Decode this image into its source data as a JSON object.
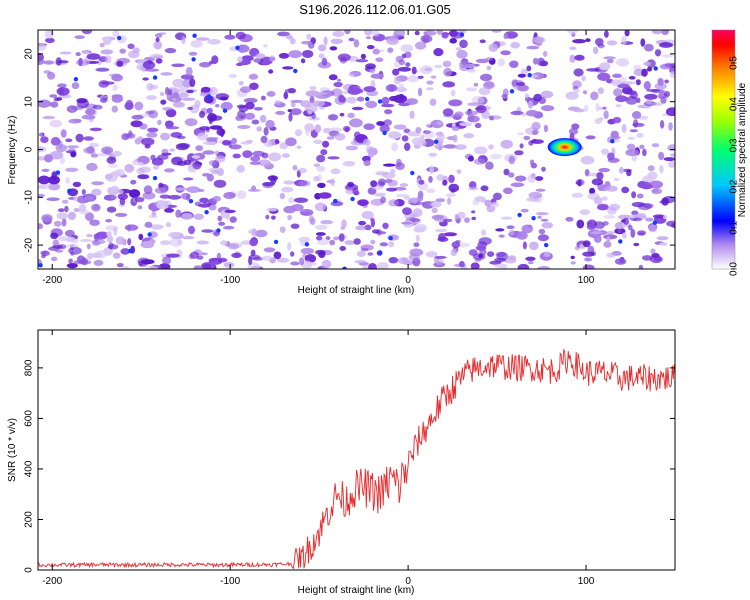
{
  "figure": {
    "title": "S196.2026.112.06.01.G05"
  },
  "chart_data": [
    {
      "type": "heatmap",
      "xlabel": "Height of straight line (km)",
      "ylabel": "Frequency (Hz)",
      "xlim": [
        -208,
        150
      ],
      "ylim": [
        -25,
        25
      ],
      "xticks": [
        -200,
        -100,
        0,
        100
      ],
      "yticks": [
        -20,
        -10,
        0,
        10,
        20
      ],
      "colorbar": {
        "label": "Normalized spectral amplitude",
        "range": [
          0,
          0.58
        ],
        "ticks": [
          0.0,
          0.1,
          0.2,
          0.3,
          0.4,
          0.5
        ],
        "tick_labels": [
          "0.0",
          "0.1",
          "0.2",
          "0.3",
          "0.4",
          "0.5"
        ],
        "colormap": [
          "#ffffff",
          "#8a2be2",
          "#0000ff",
          "#00bfff",
          "#00ff80",
          "#80ff00",
          "#ffff00",
          "#ff8000",
          "#ff0000",
          "#ff0066"
        ]
      },
      "peak": {
        "x": 88,
        "y": 0.5,
        "value": 0.57
      },
      "background_level": 0.05,
      "notable_vertical_band_x": 85,
      "grid": false
    },
    {
      "type": "line",
      "xlabel": "Height of straight line (km)",
      "ylabel": "SNR (10 * v/v)",
      "xlim": [
        -208,
        150
      ],
      "ylim": [
        0,
        950
      ],
      "xticks": [
        -200,
        -100,
        0,
        100
      ],
      "yticks": [
        0,
        200,
        400,
        600,
        800
      ],
      "line_color": "#e8282a",
      "grid": false,
      "series": [
        {
          "x": [
            -208,
            -190,
            -170,
            -150,
            -130,
            -110,
            -90,
            -75,
            -65,
            -60,
            -50,
            -45,
            -40,
            -35,
            -30,
            -25,
            -20,
            -15,
            -10,
            -5,
            0,
            5,
            10,
            15,
            20,
            25,
            30,
            35,
            40,
            45,
            50,
            60,
            70,
            80,
            85,
            90,
            100,
            110,
            120,
            130,
            140,
            150
          ],
          "values": [
            20,
            20,
            21,
            20,
            21,
            20,
            21,
            22,
            25,
            40,
            150,
            230,
            300,
            270,
            320,
            330,
            310,
            300,
            360,
            330,
            420,
            500,
            560,
            620,
            680,
            720,
            760,
            790,
            800,
            810,
            810,
            800,
            800,
            790,
            800,
            840,
            780,
            780,
            760,
            760,
            760,
            760
          ]
        }
      ]
    }
  ]
}
